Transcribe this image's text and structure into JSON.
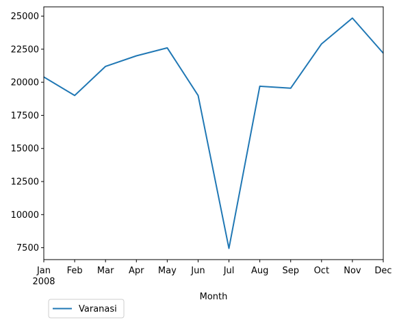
{
  "chart_data": {
    "type": "line",
    "x": [
      "Jan",
      "Feb",
      "Mar",
      "Apr",
      "May",
      "Jun",
      "Jul",
      "Aug",
      "Sep",
      "Oct",
      "Nov",
      "Dec"
    ],
    "year_label": "2008",
    "xlabel": "Month",
    "ylabel": "",
    "ylim": [
      6600,
      25700
    ],
    "yticks": [
      7500,
      10000,
      12500,
      15000,
      17500,
      20000,
      22500,
      25000
    ],
    "series": [
      {
        "name": "Varanasi",
        "color": "#1f77b4",
        "values": [
          20400,
          19000,
          21200,
          22000,
          22600,
          19000,
          7450,
          19700,
          19550,
          22900,
          24850,
          22200
        ]
      }
    ],
    "grid": false,
    "legend": "bottom-left, below axes"
  }
}
